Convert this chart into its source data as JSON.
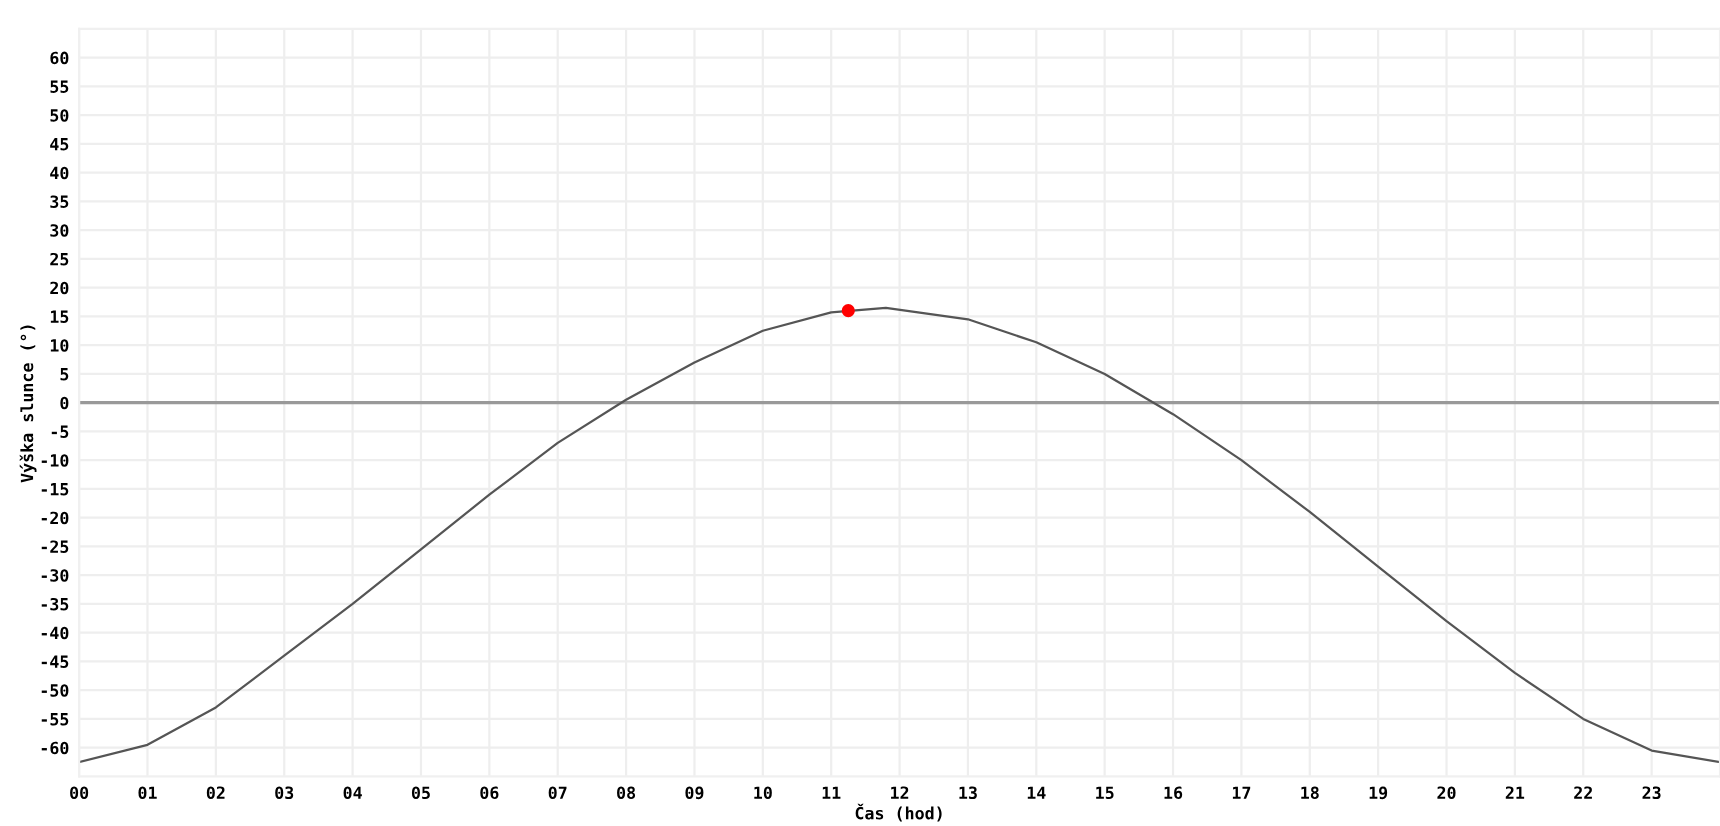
{
  "chart_data": {
    "type": "line",
    "xlabel": "Čas (hod)",
    "ylabel": "Výška slunce (°)",
    "xlim": [
      0,
      24
    ],
    "ylim": [
      -65,
      65
    ],
    "xticks": [
      {
        "value": 0,
        "label": "00"
      },
      {
        "value": 1,
        "label": "01"
      },
      {
        "value": 2,
        "label": "02"
      },
      {
        "value": 3,
        "label": "03"
      },
      {
        "value": 4,
        "label": "04"
      },
      {
        "value": 5,
        "label": "05"
      },
      {
        "value": 6,
        "label": "06"
      },
      {
        "value": 7,
        "label": "07"
      },
      {
        "value": 8,
        "label": "08"
      },
      {
        "value": 9,
        "label": "09"
      },
      {
        "value": 10,
        "label": "10"
      },
      {
        "value": 11,
        "label": "11"
      },
      {
        "value": 12,
        "label": "12"
      },
      {
        "value": 13,
        "label": "13"
      },
      {
        "value": 14,
        "label": "14"
      },
      {
        "value": 15,
        "label": "15"
      },
      {
        "value": 16,
        "label": "16"
      },
      {
        "value": 17,
        "label": "17"
      },
      {
        "value": 18,
        "label": "18"
      },
      {
        "value": 19,
        "label": "19"
      },
      {
        "value": 20,
        "label": "20"
      },
      {
        "value": 21,
        "label": "21"
      },
      {
        "value": 22,
        "label": "22"
      },
      {
        "value": 23,
        "label": "23"
      }
    ],
    "yticks": [
      -60,
      -55,
      -50,
      -45,
      -40,
      -35,
      -30,
      -25,
      -20,
      -15,
      -10,
      -5,
      0,
      5,
      10,
      15,
      20,
      25,
      30,
      35,
      40,
      45,
      50,
      55,
      60
    ],
    "grid": true,
    "ref_lines": [
      {
        "axis": "y",
        "value": 0,
        "color": "#999999"
      }
    ],
    "series": [
      {
        "color": "#555555",
        "marker": "none",
        "x": [
          0,
          1,
          2,
          3,
          4,
          5,
          6,
          7,
          8,
          9,
          10,
          11,
          11.8,
          13,
          14,
          15,
          16,
          17,
          18,
          19,
          20,
          21,
          22,
          23,
          24
        ],
        "values": [
          -62.5,
          -59.5,
          -53,
          -44,
          -35,
          -25.5,
          -16,
          -7,
          0.5,
          7,
          12.5,
          15.7,
          16.5,
          14.5,
          10.5,
          5,
          -2,
          -10,
          -19,
          -28.5,
          -38,
          -47,
          -55,
          -60.5,
          -62.5
        ]
      },
      {
        "type": "scatter",
        "color": "#ff0000",
        "marker": "circle",
        "x": [
          11.25
        ],
        "values": [
          16
        ]
      }
    ]
  }
}
